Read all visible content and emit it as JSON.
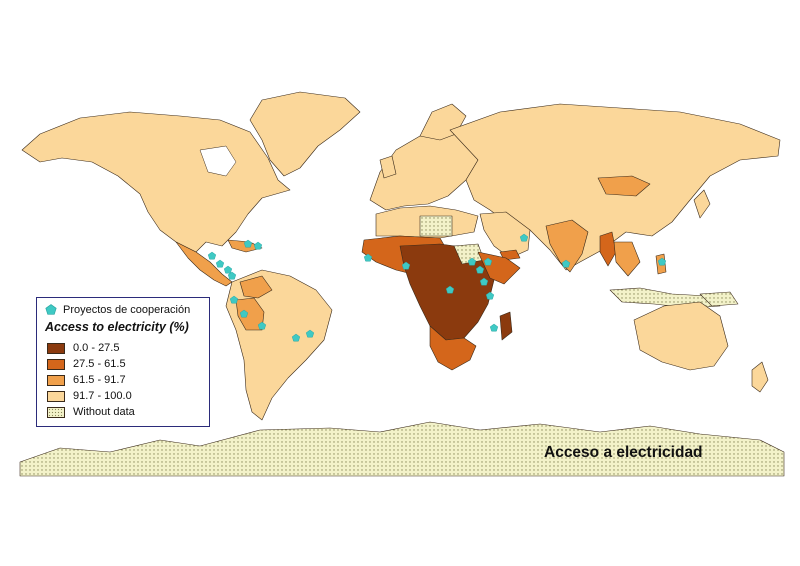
{
  "map": {
    "title": "Acceso a electricidad",
    "theme": "Access to electricity (%)"
  },
  "legend": {
    "projects_label": "Proyectos de cooperación",
    "title": "Access to electricity (%)",
    "classes": [
      {
        "label": "0.0 - 27.5",
        "color": "#8b3a0e"
      },
      {
        "label": "27.5 - 61.5",
        "color": "#d4661b"
      },
      {
        "label": "61.5 - 91.7",
        "color": "#f0a04b"
      },
      {
        "label": "91.7 - 100.0",
        "color": "#fbd79a"
      },
      {
        "label": "Without data",
        "color": "#f3f2c9"
      }
    ]
  },
  "colors": {
    "project_marker": "#3fc9c4",
    "border": "#3a2a1a",
    "legend_frame": "#2b2b7a"
  }
}
